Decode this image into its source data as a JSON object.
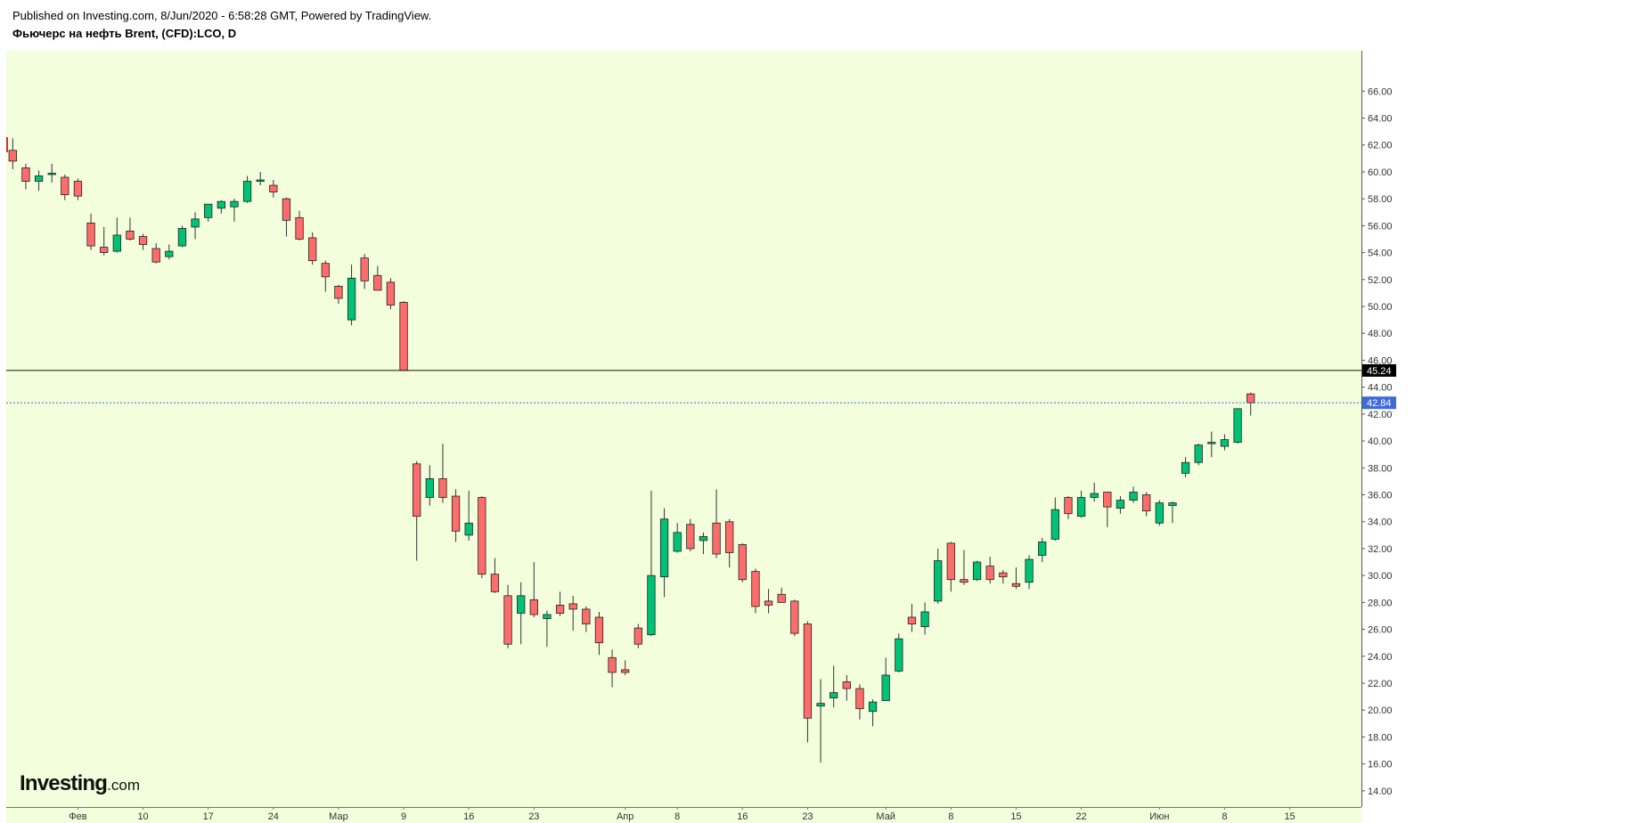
{
  "header": {
    "published": "Published on Investing.com, 8/Jun/2020 - 6:58:28 GMT, Powered by TradingView.",
    "title": "Фьючерс на нефть Brent, (CFD):LCO, D"
  },
  "logo": {
    "main": "Investing",
    "suffix": ".com"
  },
  "colors": {
    "background": "#f3fedc",
    "up": "#00c176",
    "down": "#ff6c6b",
    "wick": "#333333",
    "price_line": "#111111",
    "last_line": "#3f6bd8",
    "badge_price": "#000000",
    "badge_last": "#3f6bd8"
  },
  "chart_data": {
    "type": "candlestick",
    "symbol": "LCO",
    "interval": "D",
    "y_ticks": [
      14,
      16,
      18,
      20,
      22,
      24,
      26,
      28,
      30,
      32,
      34,
      36,
      38,
      40,
      42,
      44,
      46,
      48,
      50,
      52,
      54,
      56,
      58,
      60,
      62,
      64,
      66
    ],
    "y_tick_labels": [
      "14.00",
      "16.00",
      "18.00",
      "20.00",
      "22.00",
      "24.00",
      "26.00",
      "28.00",
      "30.00",
      "32.00",
      "34.00",
      "36.00",
      "38.00",
      "40.00",
      "42.00",
      "44.00",
      "46.00",
      "48.00",
      "50.00",
      "52.00",
      "54.00",
      "56.00",
      "58.00",
      "60.00",
      "62.00",
      "64.00",
      "66.00"
    ],
    "ylim": [
      12.8,
      69.0
    ],
    "x_ticks": [
      {
        "label": "Фев",
        "index": 5
      },
      {
        "label": "10",
        "index": 10
      },
      {
        "label": "17",
        "index": 15
      },
      {
        "label": "24",
        "index": 20
      },
      {
        "label": "Мар",
        "index": 25
      },
      {
        "label": "9",
        "index": 30
      },
      {
        "label": "16",
        "index": 35
      },
      {
        "label": "23",
        "index": 40
      },
      {
        "label": "Апр",
        "index": 47
      },
      {
        "label": "8",
        "index": 51
      },
      {
        "label": "16",
        "index": 56
      },
      {
        "label": "23",
        "index": 61
      },
      {
        "label": "Май",
        "index": 67
      },
      {
        "label": "8",
        "index": 72
      },
      {
        "label": "15",
        "index": 77
      },
      {
        "label": "22",
        "index": 82
      },
      {
        "label": "Июн",
        "index": 88
      },
      {
        "label": "8",
        "index": 93
      },
      {
        "label": "15",
        "index": 98
      }
    ],
    "candles": [
      {
        "i": 0,
        "o": 61.6,
        "h": 62.5,
        "l": 60.2,
        "c": 60.8
      },
      {
        "i": 1,
        "o": 60.3,
        "h": 60.6,
        "l": 58.7,
        "c": 59.3
      },
      {
        "i": 2,
        "o": 59.3,
        "h": 60.1,
        "l": 58.6,
        "c": 59.7
      },
      {
        "i": 3,
        "o": 59.8,
        "h": 60.6,
        "l": 59.2,
        "c": 59.9
      },
      {
        "i": 4,
        "o": 59.6,
        "h": 59.8,
        "l": 57.9,
        "c": 58.3
      },
      {
        "i": 5,
        "o": 59.3,
        "h": 59.5,
        "l": 57.9,
        "c": 58.2
      },
      {
        "i": 6,
        "o": 56.2,
        "h": 56.9,
        "l": 54.2,
        "c": 54.5
      },
      {
        "i": 7,
        "o": 54.4,
        "h": 55.9,
        "l": 53.8,
        "c": 54.0
      },
      {
        "i": 8,
        "o": 54.1,
        "h": 56.6,
        "l": 54.0,
        "c": 55.3
      },
      {
        "i": 9,
        "o": 55.6,
        "h": 56.6,
        "l": 54.9,
        "c": 55.0
      },
      {
        "i": 10,
        "o": 55.2,
        "h": 55.4,
        "l": 54.2,
        "c": 54.6
      },
      {
        "i": 11,
        "o": 54.3,
        "h": 54.7,
        "l": 53.2,
        "c": 53.3
      },
      {
        "i": 12,
        "o": 53.7,
        "h": 54.6,
        "l": 53.5,
        "c": 54.1
      },
      {
        "i": 13,
        "o": 54.5,
        "h": 56.0,
        "l": 54.4,
        "c": 55.8
      },
      {
        "i": 14,
        "o": 55.9,
        "h": 57.0,
        "l": 55.0,
        "c": 56.5
      },
      {
        "i": 15,
        "o": 56.6,
        "h": 57.5,
        "l": 56.3,
        "c": 57.6
      },
      {
        "i": 16,
        "o": 57.3,
        "h": 57.9,
        "l": 56.9,
        "c": 57.8
      },
      {
        "i": 17,
        "o": 57.4,
        "h": 58.0,
        "l": 56.3,
        "c": 57.8
      },
      {
        "i": 18,
        "o": 57.8,
        "h": 59.7,
        "l": 57.7,
        "c": 59.3
      },
      {
        "i": 19,
        "o": 59.3,
        "h": 60.0,
        "l": 59.0,
        "c": 59.4
      },
      {
        "i": 20,
        "o": 59.0,
        "h": 59.4,
        "l": 58.1,
        "c": 58.5
      },
      {
        "i": 21,
        "o": 58.0,
        "h": 58.1,
        "l": 55.2,
        "c": 56.4
      },
      {
        "i": 22,
        "o": 56.6,
        "h": 57.1,
        "l": 54.9,
        "c": 55.0
      },
      {
        "i": 23,
        "o": 55.1,
        "h": 55.5,
        "l": 53.1,
        "c": 53.4
      },
      {
        "i": 24,
        "o": 53.2,
        "h": 53.4,
        "l": 51.1,
        "c": 52.2
      },
      {
        "i": 25,
        "o": 51.5,
        "h": 51.6,
        "l": 50.2,
        "c": 50.6
      },
      {
        "i": 26,
        "o": 49.0,
        "h": 53.1,
        "l": 48.6,
        "c": 52.1
      },
      {
        "i": 27,
        "o": 53.6,
        "h": 53.9,
        "l": 51.3,
        "c": 51.9
      },
      {
        "i": 28,
        "o": 52.3,
        "h": 53.0,
        "l": 51.2,
        "c": 51.2
      },
      {
        "i": 29,
        "o": 51.8,
        "h": 52.1,
        "l": 49.8,
        "c": 50.1
      },
      {
        "i": 30,
        "o": 50.3,
        "h": 50.4,
        "l": 45.24,
        "c": 45.24
      },
      {
        "i": 31,
        "o": 38.3,
        "h": 38.5,
        "l": 31.1,
        "c": 34.4
      },
      {
        "i": 32,
        "o": 35.8,
        "h": 38.2,
        "l": 35.2,
        "c": 37.2
      },
      {
        "i": 33,
        "o": 37.2,
        "h": 39.8,
        "l": 35.4,
        "c": 35.8
      },
      {
        "i": 34,
        "o": 35.9,
        "h": 36.4,
        "l": 32.5,
        "c": 33.3
      },
      {
        "i": 35,
        "o": 33.0,
        "h": 36.3,
        "l": 32.6,
        "c": 33.9
      },
      {
        "i": 36,
        "o": 35.8,
        "h": 35.9,
        "l": 29.8,
        "c": 30.1
      },
      {
        "i": 37,
        "o": 30.1,
        "h": 31.3,
        "l": 28.7,
        "c": 28.8
      },
      {
        "i": 38,
        "o": 28.5,
        "h": 29.3,
        "l": 24.6,
        "c": 24.9
      },
      {
        "i": 39,
        "o": 27.2,
        "h": 29.5,
        "l": 24.9,
        "c": 28.5
      },
      {
        "i": 40,
        "o": 28.2,
        "h": 31.0,
        "l": 26.9,
        "c": 27.1
      },
      {
        "i": 41,
        "o": 26.8,
        "h": 27.4,
        "l": 24.7,
        "c": 27.1
      },
      {
        "i": 42,
        "o": 27.8,
        "h": 28.8,
        "l": 27.0,
        "c": 27.2
      },
      {
        "i": 43,
        "o": 27.9,
        "h": 28.5,
        "l": 25.9,
        "c": 27.5
      },
      {
        "i": 44,
        "o": 27.5,
        "h": 27.7,
        "l": 25.8,
        "c": 26.4
      },
      {
        "i": 45,
        "o": 26.9,
        "h": 27.3,
        "l": 24.1,
        "c": 25.0
      },
      {
        "i": 46,
        "o": 23.9,
        "h": 24.5,
        "l": 21.7,
        "c": 22.8
      },
      {
        "i": 47,
        "o": 23.0,
        "h": 23.7,
        "l": 22.6,
        "c": 22.8
      },
      {
        "i": 48,
        "o": 26.1,
        "h": 26.4,
        "l": 24.6,
        "c": 24.9
      },
      {
        "i": 49,
        "o": 25.6,
        "h": 36.3,
        "l": 25.5,
        "c": 30.0
      },
      {
        "i": 50,
        "o": 29.9,
        "h": 35.0,
        "l": 28.4,
        "c": 34.2
      },
      {
        "i": 51,
        "o": 31.8,
        "h": 33.9,
        "l": 31.7,
        "c": 33.2
      },
      {
        "i": 52,
        "o": 33.8,
        "h": 34.2,
        "l": 31.8,
        "c": 32.0
      },
      {
        "i": 53,
        "o": 32.6,
        "h": 33.2,
        "l": 31.6,
        "c": 32.9
      },
      {
        "i": 54,
        "o": 33.9,
        "h": 36.4,
        "l": 31.3,
        "c": 31.6
      },
      {
        "i": 55,
        "o": 34.0,
        "h": 34.2,
        "l": 30.6,
        "c": 31.7
      },
      {
        "i": 56,
        "o": 32.3,
        "h": 32.4,
        "l": 29.5,
        "c": 29.7
      },
      {
        "i": 57,
        "o": 30.3,
        "h": 30.5,
        "l": 27.2,
        "c": 27.7
      },
      {
        "i": 58,
        "o": 28.1,
        "h": 29.0,
        "l": 27.2,
        "c": 27.8
      },
      {
        "i": 59,
        "o": 28.6,
        "h": 29.1,
        "l": 28.0,
        "c": 28.0
      },
      {
        "i": 60,
        "o": 28.1,
        "h": 28.2,
        "l": 25.5,
        "c": 25.7
      },
      {
        "i": 61,
        "o": 26.4,
        "h": 26.6,
        "l": 17.6,
        "c": 19.4
      },
      {
        "i": 62,
        "o": 20.3,
        "h": 22.3,
        "l": 16.1,
        "c": 20.5
      },
      {
        "i": 63,
        "o": 20.9,
        "h": 23.3,
        "l": 20.2,
        "c": 21.3
      },
      {
        "i": 64,
        "o": 22.1,
        "h": 22.6,
        "l": 20.7,
        "c": 21.6
      },
      {
        "i": 65,
        "o": 21.6,
        "h": 21.9,
        "l": 19.3,
        "c": 20.1
      },
      {
        "i": 66,
        "o": 19.9,
        "h": 20.8,
        "l": 18.8,
        "c": 20.6
      },
      {
        "i": 67,
        "o": 20.7,
        "h": 23.9,
        "l": 20.7,
        "c": 22.6
      },
      {
        "i": 68,
        "o": 22.9,
        "h": 25.7,
        "l": 22.8,
        "c": 25.3
      },
      {
        "i": 69,
        "o": 26.9,
        "h": 27.9,
        "l": 25.8,
        "c": 26.4
      },
      {
        "i": 70,
        "o": 26.2,
        "h": 28.0,
        "l": 25.6,
        "c": 27.3
      },
      {
        "i": 71,
        "o": 28.1,
        "h": 32.0,
        "l": 27.9,
        "c": 31.1
      },
      {
        "i": 72,
        "o": 32.4,
        "h": 32.5,
        "l": 28.8,
        "c": 29.7
      },
      {
        "i": 73,
        "o": 29.7,
        "h": 31.9,
        "l": 29.3,
        "c": 29.5
      },
      {
        "i": 74,
        "o": 29.7,
        "h": 31.1,
        "l": 29.6,
        "c": 31.0
      },
      {
        "i": 75,
        "o": 30.7,
        "h": 31.4,
        "l": 29.4,
        "c": 29.7
      },
      {
        "i": 76,
        "o": 30.2,
        "h": 30.4,
        "l": 29.4,
        "c": 29.9
      },
      {
        "i": 77,
        "o": 29.4,
        "h": 30.6,
        "l": 29.0,
        "c": 29.2
      },
      {
        "i": 78,
        "o": 29.5,
        "h": 31.5,
        "l": 29.0,
        "c": 31.2
      },
      {
        "i": 79,
        "o": 31.5,
        "h": 32.8,
        "l": 31.0,
        "c": 32.5
      },
      {
        "i": 80,
        "o": 32.7,
        "h": 35.8,
        "l": 32.6,
        "c": 34.9
      },
      {
        "i": 81,
        "o": 35.8,
        "h": 35.9,
        "l": 34.2,
        "c": 34.6
      },
      {
        "i": 82,
        "o": 34.4,
        "h": 36.3,
        "l": 34.3,
        "c": 35.8
      },
      {
        "i": 83,
        "o": 35.8,
        "h": 36.9,
        "l": 35.5,
        "c": 36.1
      },
      {
        "i": 84,
        "o": 36.2,
        "h": 36.2,
        "l": 33.6,
        "c": 35.1
      },
      {
        "i": 85,
        "o": 35.0,
        "h": 35.9,
        "l": 34.6,
        "c": 35.6
      },
      {
        "i": 86,
        "o": 35.6,
        "h": 36.6,
        "l": 35.4,
        "c": 36.2
      },
      {
        "i": 87,
        "o": 36.0,
        "h": 36.2,
        "l": 34.4,
        "c": 34.8
      },
      {
        "i": 88,
        "o": 33.9,
        "h": 35.6,
        "l": 33.7,
        "c": 35.4
      },
      {
        "i": 89,
        "o": 35.2,
        "h": 35.5,
        "l": 33.9,
        "c": 35.4
      },
      {
        "i": 90,
        "o": 37.6,
        "h": 38.8,
        "l": 37.3,
        "c": 38.4
      },
      {
        "i": 91,
        "o": 38.4,
        "h": 39.8,
        "l": 38.2,
        "c": 39.7
      },
      {
        "i": 92,
        "o": 39.8,
        "h": 40.7,
        "l": 38.8,
        "c": 39.9
      },
      {
        "i": 93,
        "o": 39.6,
        "h": 40.5,
        "l": 39.3,
        "c": 40.1
      },
      {
        "i": 94,
        "o": 39.9,
        "h": 42.4,
        "l": 39.8,
        "c": 42.4
      },
      {
        "i": 95,
        "o": 43.5,
        "h": 43.6,
        "l": 41.9,
        "c": 42.84
      }
    ],
    "price_line": {
      "value": 45.24,
      "label": "45.24"
    },
    "last_price": {
      "value": 42.84,
      "label": "42.84"
    },
    "x_slots": 104,
    "grid": false,
    "legend": "none"
  }
}
